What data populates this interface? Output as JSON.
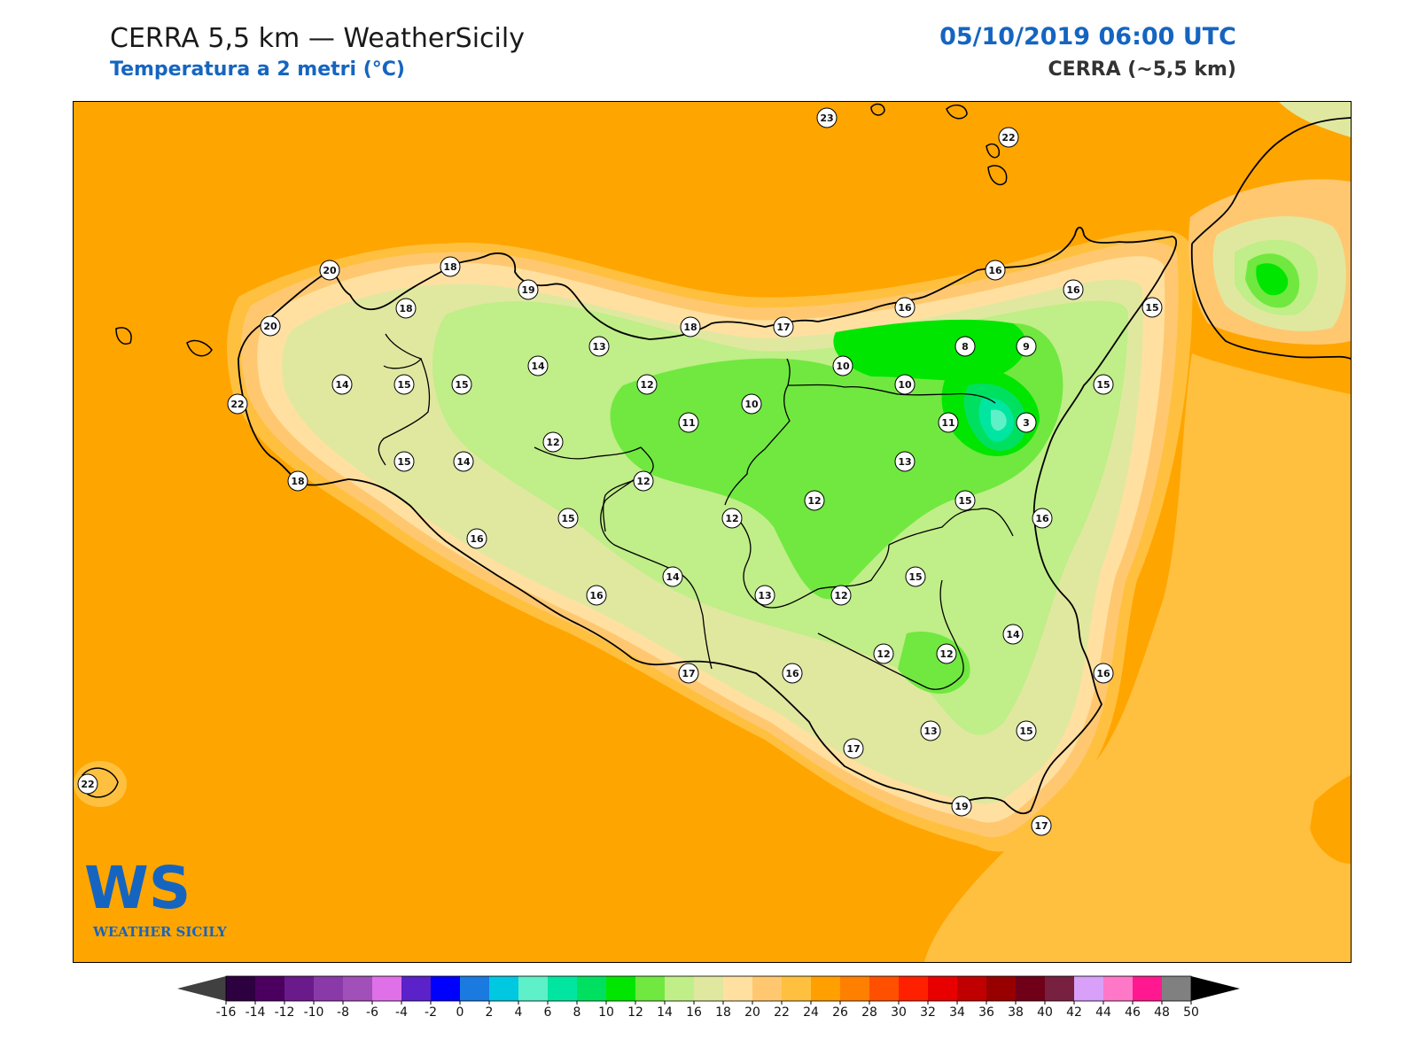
{
  "header": {
    "title": "CERRA 5,5 km — WeatherSicily",
    "subtitle": "Temperatura a 2 metri (°C)",
    "datetime": "05/10/2019 06:00 UTC",
    "model": "CERRA (~5,5 km)"
  },
  "logo": {
    "mark": "WS",
    "name": "WEATHER SICILY"
  },
  "colorbar": {
    "ticks": [
      "-16",
      "-14",
      "-12",
      "-10",
      "-8",
      "-6",
      "-4",
      "-2",
      "0",
      "2",
      "4",
      "6",
      "8",
      "10",
      "12",
      "14",
      "16",
      "18",
      "20",
      "22",
      "24",
      "26",
      "28",
      "30",
      "32",
      "34",
      "36",
      "38",
      "40",
      "42",
      "44",
      "46",
      "48",
      "50"
    ],
    "colors": [
      "#2d0040",
      "#4b0060",
      "#6a1a8a",
      "#8a3aa8",
      "#a050b8",
      "#e070e8",
      "#5a22c8",
      "#0000ff",
      "#1a7ae0",
      "#00c8e0",
      "#5ef0c8",
      "#00e6a0",
      "#00e060",
      "#00e600",
      "#70e840",
      "#c0ee88",
      "#e0e8a0",
      "#ffe0a0",
      "#ffc870",
      "#ffc040",
      "#ffa000",
      "#ff8000",
      "#ff5000",
      "#ff2000",
      "#e80000",
      "#c00000",
      "#980000",
      "#700018",
      "#782040",
      "#d8a0f8",
      "#ff78c8",
      "#ff1890",
      "#808080",
      "#383838"
    ],
    "under_color": "#404040",
    "over_color": "#000000"
  },
  "map_values": [
    {
      "v": "23"
    },
    {
      "v": "22"
    },
    {
      "v": "20"
    },
    {
      "v": "18"
    },
    {
      "v": "19"
    },
    {
      "v": "18"
    },
    {
      "v": "20"
    },
    {
      "v": "16"
    },
    {
      "v": "16"
    },
    {
      "v": "15"
    },
    {
      "v": "18"
    },
    {
      "v": "17"
    },
    {
      "v": "16"
    },
    {
      "v": "8"
    },
    {
      "v": "9"
    },
    {
      "v": "13"
    },
    {
      "v": "14"
    },
    {
      "v": "14"
    },
    {
      "v": "15"
    },
    {
      "v": "15"
    },
    {
      "v": "12"
    },
    {
      "v": "10"
    },
    {
      "v": "10"
    },
    {
      "v": "15"
    },
    {
      "v": "22"
    },
    {
      "v": "10"
    },
    {
      "v": "11"
    },
    {
      "v": "11"
    },
    {
      "v": "3"
    },
    {
      "v": "12"
    },
    {
      "v": "15"
    },
    {
      "v": "14"
    },
    {
      "v": "13"
    },
    {
      "v": "18"
    },
    {
      "v": "12"
    },
    {
      "v": "12"
    },
    {
      "v": "15"
    },
    {
      "v": "15"
    },
    {
      "v": "12"
    },
    {
      "v": "16"
    },
    {
      "v": "16"
    },
    {
      "v": "14"
    },
    {
      "v": "15"
    },
    {
      "v": "13"
    },
    {
      "v": "12"
    },
    {
      "v": "16"
    },
    {
      "v": "14"
    },
    {
      "v": "12"
    },
    {
      "v": "12"
    },
    {
      "v": "17"
    },
    {
      "v": "16"
    },
    {
      "v": "16"
    },
    {
      "v": "17"
    },
    {
      "v": "13"
    },
    {
      "v": "15"
    },
    {
      "v": "22"
    },
    {
      "v": "19"
    },
    {
      "v": "17"
    }
  ]
}
